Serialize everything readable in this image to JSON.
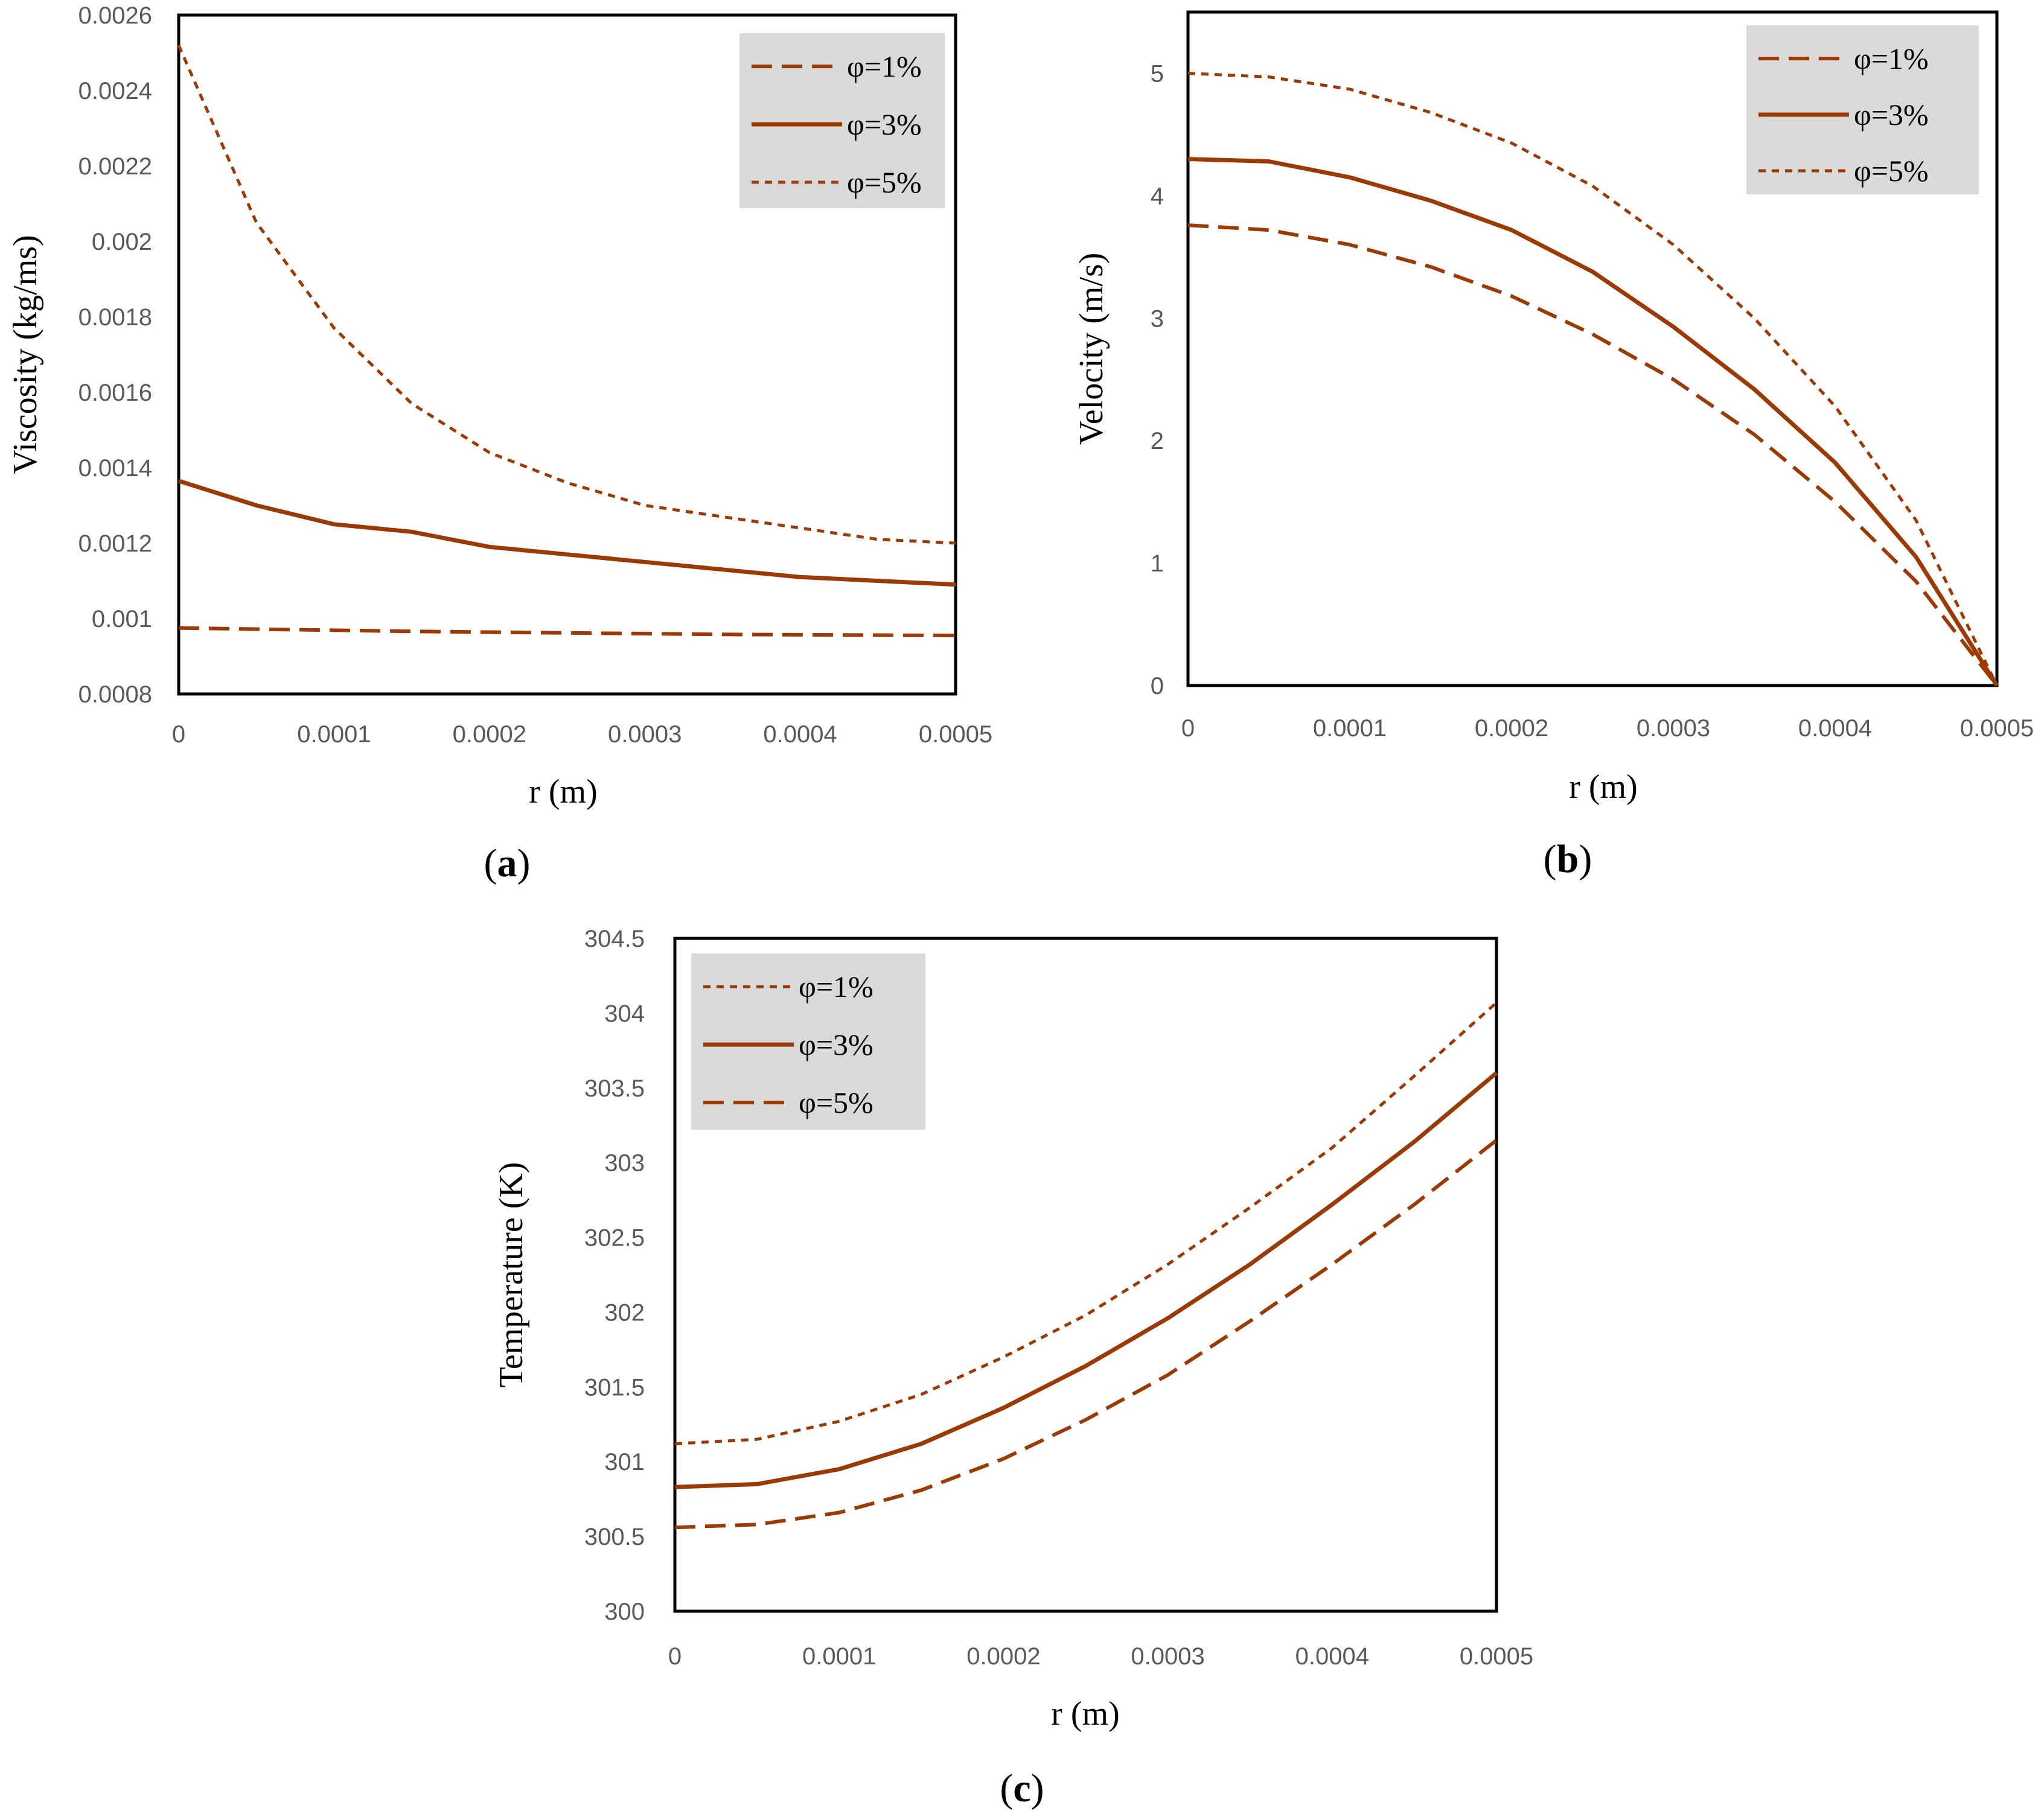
{
  "colors": {
    "series": "#9c3a06",
    "frame": "#000000",
    "legend_bg": "#d9d9d9",
    "tick_text": "#595959"
  },
  "chart_data": [
    {
      "id": "a",
      "type": "line",
      "caption": "a",
      "xlabel": "r (m)",
      "ylabel": "Viscosity (kg/ms)",
      "xlim": [
        0,
        0.0005
      ],
      "ylim": [
        0.0008,
        0.0026
      ],
      "xticks": [
        "0",
        "0.0001",
        "0.0002",
        "0.0003",
        "0.0004",
        "0.0005"
      ],
      "yticks": [
        "0.0008",
        "0.001",
        "0.0012",
        "0.0014",
        "0.0016",
        "0.0018",
        "0.002",
        "0.0022",
        "0.0024",
        "0.0026"
      ],
      "grid": false,
      "legend_position": "top-right",
      "x": [
        0,
        5e-05,
        0.0001,
        0.00015,
        0.0002,
        0.00025,
        0.0003,
        0.00035,
        0.0004,
        0.00045,
        0.0005
      ],
      "series": [
        {
          "name": "φ=1%",
          "style": "long-dash",
          "values": [
            0.000975,
            0.000972,
            0.000969,
            0.000966,
            0.000964,
            0.000962,
            0.00096,
            0.000958,
            0.000957,
            0.000956,
            0.000955
          ]
        },
        {
          "name": "φ=3%",
          "style": "solid",
          "values": [
            0.001365,
            0.0013,
            0.00125,
            0.00123,
            0.00119,
            0.00117,
            0.00115,
            0.00113,
            0.00111,
            0.0011,
            0.00109
          ]
        },
        {
          "name": "φ=5%",
          "style": "short-dash",
          "values": [
            0.00252,
            0.00205,
            0.00177,
            0.00157,
            0.00144,
            0.00136,
            0.0013,
            0.00127,
            0.00124,
            0.00121,
            0.0012
          ]
        }
      ]
    },
    {
      "id": "b",
      "type": "line",
      "caption": "b",
      "xlabel": "r (m)",
      "ylabel": "Velocity (m/s)",
      "xlim": [
        0,
        0.0005
      ],
      "ylim": [
        0,
        5.5
      ],
      "xticks": [
        "0",
        "0.0001",
        "0.0002",
        "0.0003",
        "0.0004",
        "0.0005"
      ],
      "yticks": [
        "0",
        "1",
        "2",
        "3",
        "4",
        "5"
      ],
      "grid": false,
      "legend_position": "top-right",
      "x": [
        0,
        5e-05,
        0.0001,
        0.00015,
        0.0002,
        0.00025,
        0.0003,
        0.00035,
        0.0004,
        0.00045,
        0.0005
      ],
      "series": [
        {
          "name": "φ=1%",
          "style": "long-dash",
          "values": [
            3.76,
            3.72,
            3.6,
            3.42,
            3.18,
            2.87,
            2.5,
            2.05,
            1.5,
            0.85,
            0.0
          ]
        },
        {
          "name": "φ=3%",
          "style": "solid",
          "values": [
            4.3,
            4.28,
            4.15,
            3.96,
            3.72,
            3.38,
            2.93,
            2.42,
            1.82,
            1.05,
            0.0
          ]
        },
        {
          "name": "φ=5%",
          "style": "short-dash",
          "values": [
            5.0,
            4.97,
            4.87,
            4.68,
            4.43,
            4.08,
            3.6,
            3.0,
            2.28,
            1.35,
            0.0
          ]
        }
      ]
    },
    {
      "id": "c",
      "type": "line",
      "caption": "c",
      "xlabel": "r (m)",
      "ylabel": "Temperature (K)",
      "xlim": [
        0,
        0.0005
      ],
      "ylim": [
        300,
        304.5
      ],
      "xticks": [
        "0",
        "0.0001",
        "0.0002",
        "0.0003",
        "0.0004",
        "0.0005"
      ],
      "yticks": [
        "300",
        "300.5",
        "301",
        "301.5",
        "302",
        "302.5",
        "303",
        "303.5",
        "304",
        "304.5"
      ],
      "grid": false,
      "legend_position": "top-left",
      "x": [
        0,
        5e-05,
        0.0001,
        0.00015,
        0.0002,
        0.00025,
        0.0003,
        0.00035,
        0.0004,
        0.00045,
        0.0005
      ],
      "series": [
        {
          "name": "φ=1%",
          "style": "short-dash",
          "values": [
            301.12,
            301.15,
            301.27,
            301.45,
            301.7,
            301.98,
            302.32,
            302.7,
            303.1,
            303.58,
            304.07
          ]
        },
        {
          "name": "φ=3%",
          "style": "solid",
          "values": [
            300.83,
            300.85,
            300.95,
            301.12,
            301.36,
            301.64,
            301.96,
            302.32,
            302.72,
            303.14,
            303.6
          ]
        },
        {
          "name": "φ=5%",
          "style": "long-dash",
          "values": [
            300.56,
            300.58,
            300.66,
            300.81,
            301.02,
            301.28,
            301.58,
            301.94,
            302.32,
            302.72,
            303.15
          ]
        }
      ]
    }
  ]
}
